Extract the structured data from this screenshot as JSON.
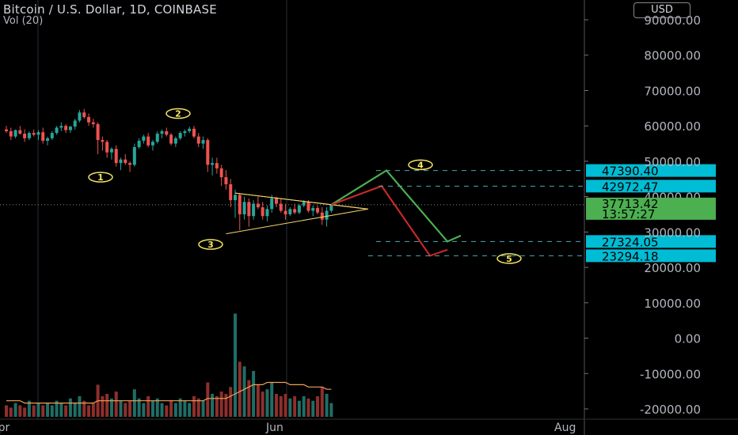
{
  "header": {
    "title": "Bitcoin / U.S. Dollar, 1D, COINBASE",
    "volume_label": "Vol (20)",
    "currency": "USD"
  },
  "colors": {
    "background": "#000000",
    "up": "#26a69a",
    "down": "#ef5350",
    "up_vol": "#1f6e66",
    "down_vol": "#8e2f2c",
    "price_tag": "#00bcd4",
    "current_tag": "#4caf50",
    "wave_label": "#f5e663",
    "bullish_path": "#4caf50",
    "bearish_path": "#c62828",
    "triangle": "#f5d36b",
    "vol_ma": "#f0a15a"
  },
  "chart_data": {
    "type": "candlestick",
    "symbol": "Bitcoin / U.S. Dollar",
    "interval": "1D",
    "exchange": "COINBASE",
    "y_axis": {
      "ticks": [
        90000,
        80000,
        70000,
        60000,
        50000,
        40000,
        30000,
        20000,
        10000,
        0,
        -10000,
        -20000
      ],
      "tick_labels": [
        "90000.00",
        "80000.00",
        "70000.00",
        "60000.00",
        "50000.00",
        "40000.00",
        "30000.00",
        "20000.00",
        "10000.00",
        "0.00",
        "-10000.00",
        "-20000.00"
      ],
      "range": [
        -22000,
        95000
      ]
    },
    "x_axis": {
      "tick_labels": [
        "Apr",
        "Jun",
        "Aug"
      ]
    },
    "candles": [
      {
        "o": 59000,
        "h": 60000,
        "l": 58000,
        "c": 58500
      },
      {
        "o": 58500,
        "h": 59500,
        "l": 56000,
        "c": 57000
      },
      {
        "o": 57000,
        "h": 59000,
        "l": 56500,
        "c": 58800
      },
      {
        "o": 58800,
        "h": 60000,
        "l": 57500,
        "c": 57800
      },
      {
        "o": 57800,
        "h": 59000,
        "l": 55500,
        "c": 56500
      },
      {
        "o": 56500,
        "h": 58500,
        "l": 56000,
        "c": 58000
      },
      {
        "o": 58000,
        "h": 59000,
        "l": 57000,
        "c": 57500
      },
      {
        "o": 57500,
        "h": 58800,
        "l": 56000,
        "c": 58200
      },
      {
        "o": 58200,
        "h": 59500,
        "l": 55000,
        "c": 55800
      },
      {
        "o": 55800,
        "h": 57000,
        "l": 54500,
        "c": 56500
      },
      {
        "o": 56500,
        "h": 58500,
        "l": 56000,
        "c": 58000
      },
      {
        "o": 58000,
        "h": 60000,
        "l": 57500,
        "c": 59500
      },
      {
        "o": 59500,
        "h": 61000,
        "l": 58500,
        "c": 60000
      },
      {
        "o": 60000,
        "h": 60500,
        "l": 58000,
        "c": 58800
      },
      {
        "o": 58800,
        "h": 60000,
        "l": 58000,
        "c": 59800
      },
      {
        "o": 59800,
        "h": 62000,
        "l": 59000,
        "c": 61500
      },
      {
        "o": 61500,
        "h": 64500,
        "l": 61000,
        "c": 63800
      },
      {
        "o": 63800,
        "h": 64800,
        "l": 62000,
        "c": 62500
      },
      {
        "o": 62500,
        "h": 63500,
        "l": 60000,
        "c": 61000
      },
      {
        "o": 61000,
        "h": 62000,
        "l": 59500,
        "c": 60500
      },
      {
        "o": 60500,
        "h": 61000,
        "l": 52000,
        "c": 56000
      },
      {
        "o": 56000,
        "h": 57000,
        "l": 53000,
        "c": 55500
      },
      {
        "o": 55500,
        "h": 56000,
        "l": 51000,
        "c": 52500
      },
      {
        "o": 52500,
        "h": 54000,
        "l": 50500,
        "c": 53500
      },
      {
        "o": 53500,
        "h": 54500,
        "l": 48500,
        "c": 49500
      },
      {
        "o": 49500,
        "h": 51000,
        "l": 47500,
        "c": 50500
      },
      {
        "o": 50500,
        "h": 52000,
        "l": 49000,
        "c": 49500
      },
      {
        "o": 49500,
        "h": 50000,
        "l": 47000,
        "c": 49000
      },
      {
        "o": 49000,
        "h": 55000,
        "l": 48500,
        "c": 54000
      },
      {
        "o": 54000,
        "h": 56500,
        "l": 53500,
        "c": 55800
      },
      {
        "o": 55800,
        "h": 57500,
        "l": 55000,
        "c": 57000
      },
      {
        "o": 57000,
        "h": 58000,
        "l": 54000,
        "c": 54500
      },
      {
        "o": 54500,
        "h": 56000,
        "l": 53000,
        "c": 55500
      },
      {
        "o": 55500,
        "h": 58500,
        "l": 55000,
        "c": 57800
      },
      {
        "o": 57800,
        "h": 59000,
        "l": 56500,
        "c": 58500
      },
      {
        "o": 58500,
        "h": 59500,
        "l": 57000,
        "c": 57500
      },
      {
        "o": 57500,
        "h": 58000,
        "l": 54500,
        "c": 55000
      },
      {
        "o": 55000,
        "h": 57000,
        "l": 54000,
        "c": 56500
      },
      {
        "o": 56500,
        "h": 58500,
        "l": 56000,
        "c": 58000
      },
      {
        "o": 58000,
        "h": 59000,
        "l": 57000,
        "c": 58500
      },
      {
        "o": 58500,
        "h": 59800,
        "l": 58000,
        "c": 59200
      },
      {
        "o": 59200,
        "h": 60000,
        "l": 56500,
        "c": 57000
      },
      {
        "o": 57000,
        "h": 58000,
        "l": 54000,
        "c": 55000
      },
      {
        "o": 55000,
        "h": 57000,
        "l": 53500,
        "c": 56000
      },
      {
        "o": 56000,
        "h": 56500,
        "l": 47000,
        "c": 49000
      },
      {
        "o": 49000,
        "h": 51000,
        "l": 46000,
        "c": 49500
      },
      {
        "o": 49500,
        "h": 51000,
        "l": 46500,
        "c": 48000
      },
      {
        "o": 48000,
        "h": 49000,
        "l": 43000,
        "c": 45500
      },
      {
        "o": 45500,
        "h": 47500,
        "l": 42000,
        "c": 43500
      },
      {
        "o": 43500,
        "h": 45000,
        "l": 37000,
        "c": 39000
      },
      {
        "o": 39000,
        "h": 42000,
        "l": 34000,
        "c": 40500
      },
      {
        "o": 40500,
        "h": 41000,
        "l": 30500,
        "c": 35000
      },
      {
        "o": 35000,
        "h": 40000,
        "l": 33500,
        "c": 38500
      },
      {
        "o": 38500,
        "h": 39500,
        "l": 31500,
        "c": 34500
      },
      {
        "o": 34500,
        "h": 39000,
        "l": 33500,
        "c": 38000
      },
      {
        "o": 38000,
        "h": 40000,
        "l": 36500,
        "c": 37000
      },
      {
        "o": 37000,
        "h": 38500,
        "l": 33500,
        "c": 34500
      },
      {
        "o": 34500,
        "h": 37500,
        "l": 33000,
        "c": 36500
      },
      {
        "o": 36500,
        "h": 40500,
        "l": 35500,
        "c": 39500
      },
      {
        "o": 39500,
        "h": 40000,
        "l": 37000,
        "c": 38000
      },
      {
        "o": 38000,
        "h": 39500,
        "l": 35500,
        "c": 36000
      },
      {
        "o": 36000,
        "h": 38000,
        "l": 33500,
        "c": 35000
      },
      {
        "o": 35000,
        "h": 37000,
        "l": 34500,
        "c": 36500
      },
      {
        "o": 36500,
        "h": 38000,
        "l": 35000,
        "c": 35500
      },
      {
        "o": 35500,
        "h": 38000,
        "l": 35000,
        "c": 37500
      },
      {
        "o": 37500,
        "h": 39000,
        "l": 37000,
        "c": 38500
      },
      {
        "o": 38500,
        "h": 39000,
        "l": 35500,
        "c": 36000
      },
      {
        "o": 36000,
        "h": 37500,
        "l": 34500,
        "c": 36800
      },
      {
        "o": 36800,
        "h": 37500,
        "l": 35000,
        "c": 35500
      },
      {
        "o": 35500,
        "h": 37000,
        "l": 32000,
        "c": 33500
      },
      {
        "o": 33500,
        "h": 37000,
        "l": 31500,
        "c": 36000
      },
      {
        "o": 36000,
        "h": 38000,
        "l": 35500,
        "c": 37713
      }
    ],
    "volume": [
      5,
      4,
      6,
      5,
      4,
      7,
      5,
      6,
      5,
      6,
      5,
      7,
      6,
      5,
      8,
      6,
      9,
      7,
      5,
      6,
      14,
      9,
      10,
      8,
      11,
      7,
      6,
      7,
      12,
      8,
      6,
      9,
      7,
      8,
      6,
      5,
      7,
      6,
      8,
      7,
      6,
      9,
      8,
      7,
      15,
      10,
      9,
      11,
      10,
      13,
      45,
      24,
      22,
      16,
      20,
      14,
      11,
      12,
      15,
      10,
      9,
      10,
      8,
      9,
      7,
      9,
      8,
      7,
      9,
      13,
      10,
      6
    ],
    "volume_ma_points": [
      7,
      7,
      7,
      7,
      6,
      6,
      6,
      6,
      6,
      6,
      6,
      6,
      6,
      6,
      6,
      6,
      6,
      6,
      6,
      6,
      7,
      7,
      7,
      7,
      7,
      7,
      7,
      7,
      7,
      7,
      7,
      7,
      7,
      7,
      7,
      7,
      7,
      7,
      7,
      7,
      7,
      7,
      7,
      7,
      8,
      8,
      8,
      8,
      8,
      9,
      10,
      11,
      12,
      13,
      14,
      14,
      14,
      15,
      15,
      15,
      15,
      15,
      14,
      14,
      14,
      14,
      13,
      13,
      13,
      13,
      12,
      12
    ],
    "current_price": {
      "value": "37713.42",
      "countdown": "13:57:27"
    },
    "levels": [
      {
        "value": 47390.4,
        "label": "47390.40"
      },
      {
        "value": 42972.47,
        "label": "42972.47"
      },
      {
        "value": 27324.05,
        "label": "27324.05"
      },
      {
        "value": 23294.18,
        "label": "23294.18"
      }
    ],
    "wave_labels": [
      "1",
      "2",
      "3",
      "4",
      "5"
    ],
    "projections": {
      "bullish": [
        [
          37713,
          0
        ],
        [
          47390,
          1
        ],
        [
          27324,
          2
        ],
        [
          29000,
          2.2
        ]
      ],
      "bearish": [
        [
          37713,
          0
        ],
        [
          43000,
          0.6
        ],
        [
          23294,
          1.6
        ],
        [
          25000,
          1.9
        ]
      ]
    }
  }
}
